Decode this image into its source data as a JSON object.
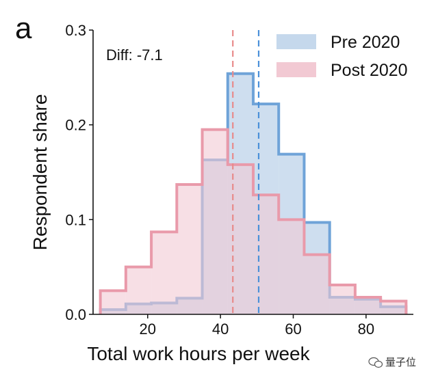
{
  "panel_label": "a",
  "annotation": "Diff: -7.1",
  "watermark": "量子位",
  "colors": {
    "pre_fill": "#c5d8ec",
    "pre_edge": "#6fa3d8",
    "post_fill": "#f2c9d3",
    "post_edge": "#e99aaa",
    "pre_line": "#4a90d9",
    "post_line": "#e88a8a"
  },
  "chart_data": {
    "type": "area",
    "xlabel": "Total work hours per week",
    "ylabel": "Respondent share",
    "xlim": [
      5,
      93
    ],
    "ylim": [
      0,
      0.3
    ],
    "xticks": [
      20,
      40,
      60,
      80
    ],
    "yticks": [
      "0.0",
      "0.1",
      "0.2",
      "0.3"
    ],
    "bin_edges": [
      7,
      14,
      21,
      28,
      35,
      42,
      49,
      56,
      63,
      70,
      77,
      84,
      91
    ],
    "series": [
      {
        "name": "Pre 2020",
        "values": [
          0.005,
          0.011,
          0.012,
          0.017,
          0.163,
          0.254,
          0.222,
          0.169,
          0.097,
          0.018,
          0.016,
          0.008
        ]
      },
      {
        "name": "Post 2020",
        "values": [
          0.025,
          0.05,
          0.087,
          0.137,
          0.195,
          0.158,
          0.126,
          0.1,
          0.063,
          0.031,
          0.018,
          0.014
        ]
      }
    ],
    "vlines": [
      {
        "series": "Pre 2020",
        "x": 50.5
      },
      {
        "series": "Post 2020",
        "x": 43.4
      }
    ],
    "legend": "top-right",
    "grid": false
  }
}
